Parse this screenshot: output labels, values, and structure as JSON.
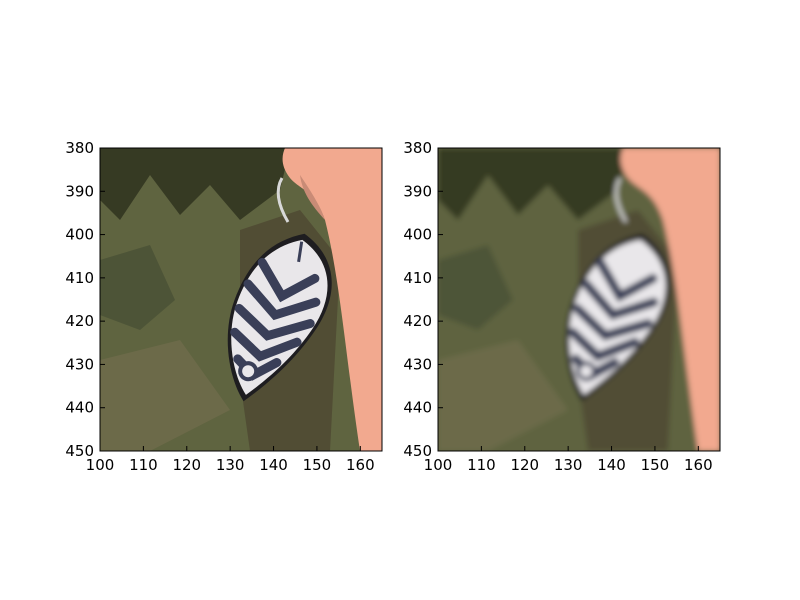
{
  "figure": {
    "panels": [
      {
        "id": "left",
        "description": "sharp crop",
        "xticks": [
          "100",
          "110",
          "120",
          "130",
          "140",
          "150",
          "160"
        ],
        "yticks": [
          "380",
          "390",
          "400",
          "410",
          "420",
          "430",
          "440",
          "450"
        ]
      },
      {
        "id": "right",
        "description": "blurred crop",
        "xticks": [
          "100",
          "110",
          "120",
          "130",
          "140",
          "150",
          "160"
        ],
        "yticks": [
          "380",
          "390",
          "400",
          "410",
          "420",
          "430",
          "440",
          "450"
        ]
      }
    ],
    "colors": {
      "foliage": "#5f6440",
      "foliage_dark": "#2f321f",
      "skin": "#f2a98f",
      "leaf_white": "#e9e7ea",
      "leaf_stripe": "#3a3f58"
    }
  }
}
